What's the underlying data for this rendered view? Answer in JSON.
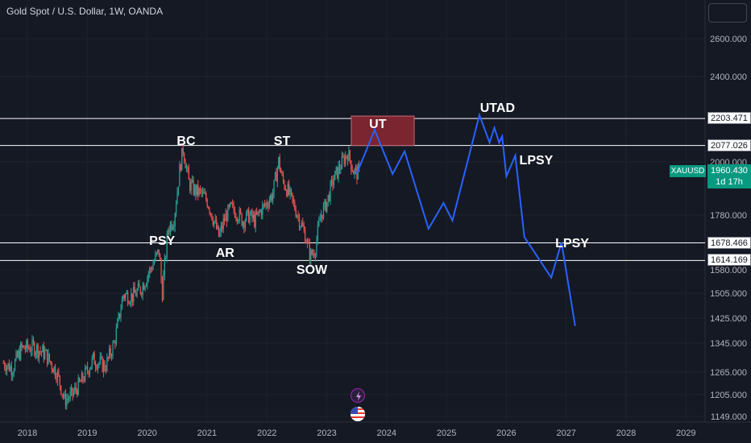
{
  "header": {
    "title": "Gold Spot / U.S. Dollar, 1W, OANDA"
  },
  "price_lines": [
    {
      "label": "2203.471",
      "value": 2203.471
    },
    {
      "label": "2077.026",
      "value": 2077.026
    },
    {
      "label": "1678.466",
      "value": 1678.466
    },
    {
      "label": "1614.169",
      "value": 1614.169
    }
  ],
  "current_price": {
    "symbol": "XAUUSD",
    "price": "1960.430",
    "countdown": "1d 17h"
  },
  "annotations": [
    {
      "text": "UT",
      "x": 2023.85,
      "y": 2170
    },
    {
      "text": "UTAD",
      "x": 2025.85,
      "y": 2245
    },
    {
      "text": "BC",
      "x": 2020.65,
      "y": 2090
    },
    {
      "text": "ST",
      "x": 2022.25,
      "y": 2090
    },
    {
      "text": "LPSY",
      "x": 2026.5,
      "y": 2000
    },
    {
      "text": "LPSY",
      "x": 2027.1,
      "y": 1670
    },
    {
      "text": "PSY",
      "x": 2020.25,
      "y": 1680
    },
    {
      "text": "AR",
      "x": 2021.3,
      "y": 1635
    },
    {
      "text": "SOW",
      "x": 2022.75,
      "y": 1575
    }
  ],
  "icons": {
    "bolt": "lightning-icon",
    "flag": "us-flag-icon"
  },
  "colors": {
    "background": "#151924",
    "up": "#26a69a",
    "down": "#ef5350",
    "projection": "#2962ff",
    "current": "#089981",
    "ut_box": "#7a2530"
  },
  "chart_data": {
    "type": "line",
    "title": "Gold Spot / U.S. Dollar, 1W, OANDA",
    "xlabel": "",
    "ylabel": "",
    "x_ticks": [
      "2018",
      "2019",
      "2020",
      "2021",
      "2022",
      "2023",
      "2024",
      "2025",
      "2026",
      "2027",
      "2028",
      "2029"
    ],
    "y_ticks": [
      "2600.000",
      "2400.000",
      "2000.000",
      "1780.000",
      "1580.000",
      "1505.000",
      "1425.000",
      "1345.000",
      "1265.000",
      "1205.000",
      "1149.000"
    ],
    "xlim": [
      2017.6,
      2029.6
    ],
    "ylim": [
      1140,
      2760
    ],
    "price_history": {
      "x": [
        2017.6,
        2017.75,
        2017.9,
        2018.1,
        2018.3,
        2018.5,
        2018.62,
        2018.75,
        2018.9,
        2019.1,
        2019.3,
        2019.45,
        2019.6,
        2019.75,
        2019.9,
        2020.05,
        2020.2,
        2020.25,
        2020.35,
        2020.45,
        2020.55,
        2020.6,
        2020.7,
        2020.8,
        2020.9,
        2021.0,
        2021.1,
        2021.2,
        2021.3,
        2021.4,
        2021.5,
        2021.6,
        2021.7,
        2021.8,
        2021.9,
        2022.0,
        2022.1,
        2022.2,
        2022.25,
        2022.35,
        2022.45,
        2022.55,
        2022.65,
        2022.72,
        2022.8,
        2022.9,
        2023.0,
        2023.1,
        2023.2,
        2023.3,
        2023.35,
        2023.45,
        2023.55
      ],
      "y": [
        1290,
        1275,
        1330,
        1335,
        1315,
        1260,
        1190,
        1205,
        1240,
        1300,
        1280,
        1345,
        1500,
        1495,
        1520,
        1580,
        1650,
        1500,
        1730,
        1770,
        1980,
        2060,
        1910,
        1880,
        1870,
        1840,
        1770,
        1700,
        1770,
        1810,
        1790,
        1760,
        1780,
        1760,
        1800,
        1830,
        1870,
        2010,
        1930,
        1880,
        1820,
        1760,
        1700,
        1630,
        1650,
        1780,
        1830,
        1920,
        1970,
        2020,
        2040,
        1960,
        1950
      ]
    },
    "series": [
      {
        "x": [
          2023.5,
          2023.8,
          2024.1,
          2024.3,
          2024.7,
          2024.95,
          2025.1,
          2025.55,
          2025.72,
          2025.8,
          2025.88,
          2025.93,
          2026.0,
          2026.15,
          2026.3,
          2026.75,
          2026.92,
          2027.15
        ],
        "y": [
          1950,
          2150,
          1950,
          2050,
          1730,
          1830,
          1760,
          2220,
          2090,
          2160,
          2090,
          2120,
          1940,
          2030,
          1700,
          1555,
          1680,
          1400
        ]
      }
    ]
  }
}
